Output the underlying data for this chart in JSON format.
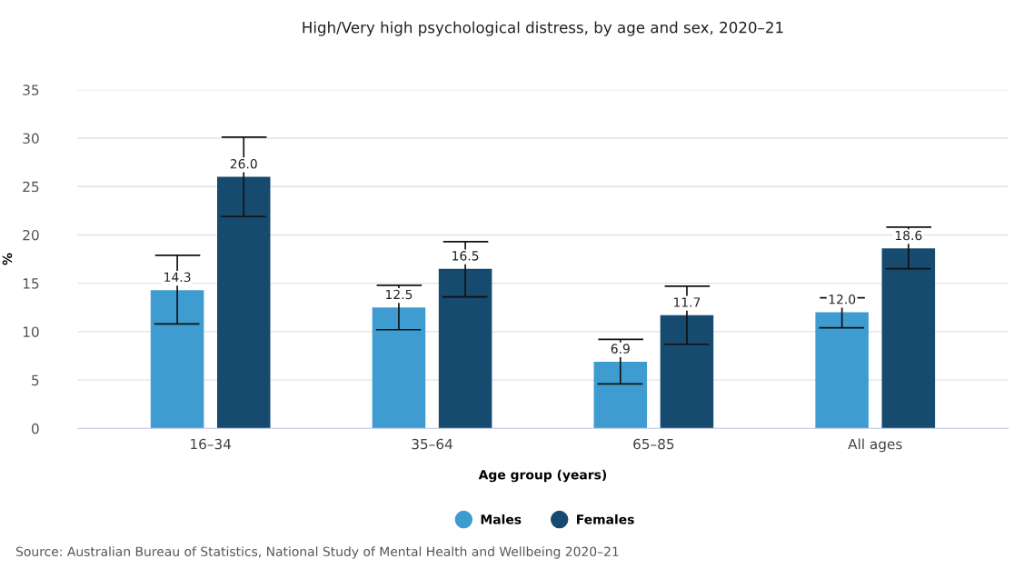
{
  "chart_data": {
    "type": "bar",
    "title": "High/Very high psychological distress, by age and sex, 2020–21",
    "xlabel": "Age group (years)",
    "ylabel": "%",
    "categories": [
      "16–34",
      "35–64",
      "65–85",
      "All ages"
    ],
    "series": [
      {
        "name": "Males",
        "color": "#3e9cd1",
        "values": [
          14.3,
          12.5,
          6.9,
          12.0
        ],
        "value_labels": [
          "14.3",
          "12.5",
          "6.9",
          "12.0"
        ],
        "errors": [
          [
            10.8,
            17.9
          ],
          [
            10.2,
            14.8
          ],
          [
            4.6,
            9.2
          ],
          [
            10.4,
            13.5
          ]
        ]
      },
      {
        "name": "Females",
        "color": "#164a6f",
        "values": [
          26.0,
          16.5,
          11.7,
          18.6
        ],
        "value_labels": [
          "26.0",
          "16.5",
          "11.7",
          "18.6"
        ],
        "errors": [
          [
            21.9,
            30.1
          ],
          [
            13.6,
            19.3
          ],
          [
            8.7,
            14.7
          ],
          [
            16.5,
            20.8
          ]
        ]
      }
    ],
    "ylim": [
      0,
      35
    ],
    "yticks": [
      0,
      5,
      10,
      15,
      20,
      25,
      30,
      35
    ],
    "grid": "y",
    "legend": "bottom",
    "annotations": [
      "Source: Australian Bureau of Statistics, National Study of Mental Health and Wellbeing 2020–21"
    ]
  }
}
